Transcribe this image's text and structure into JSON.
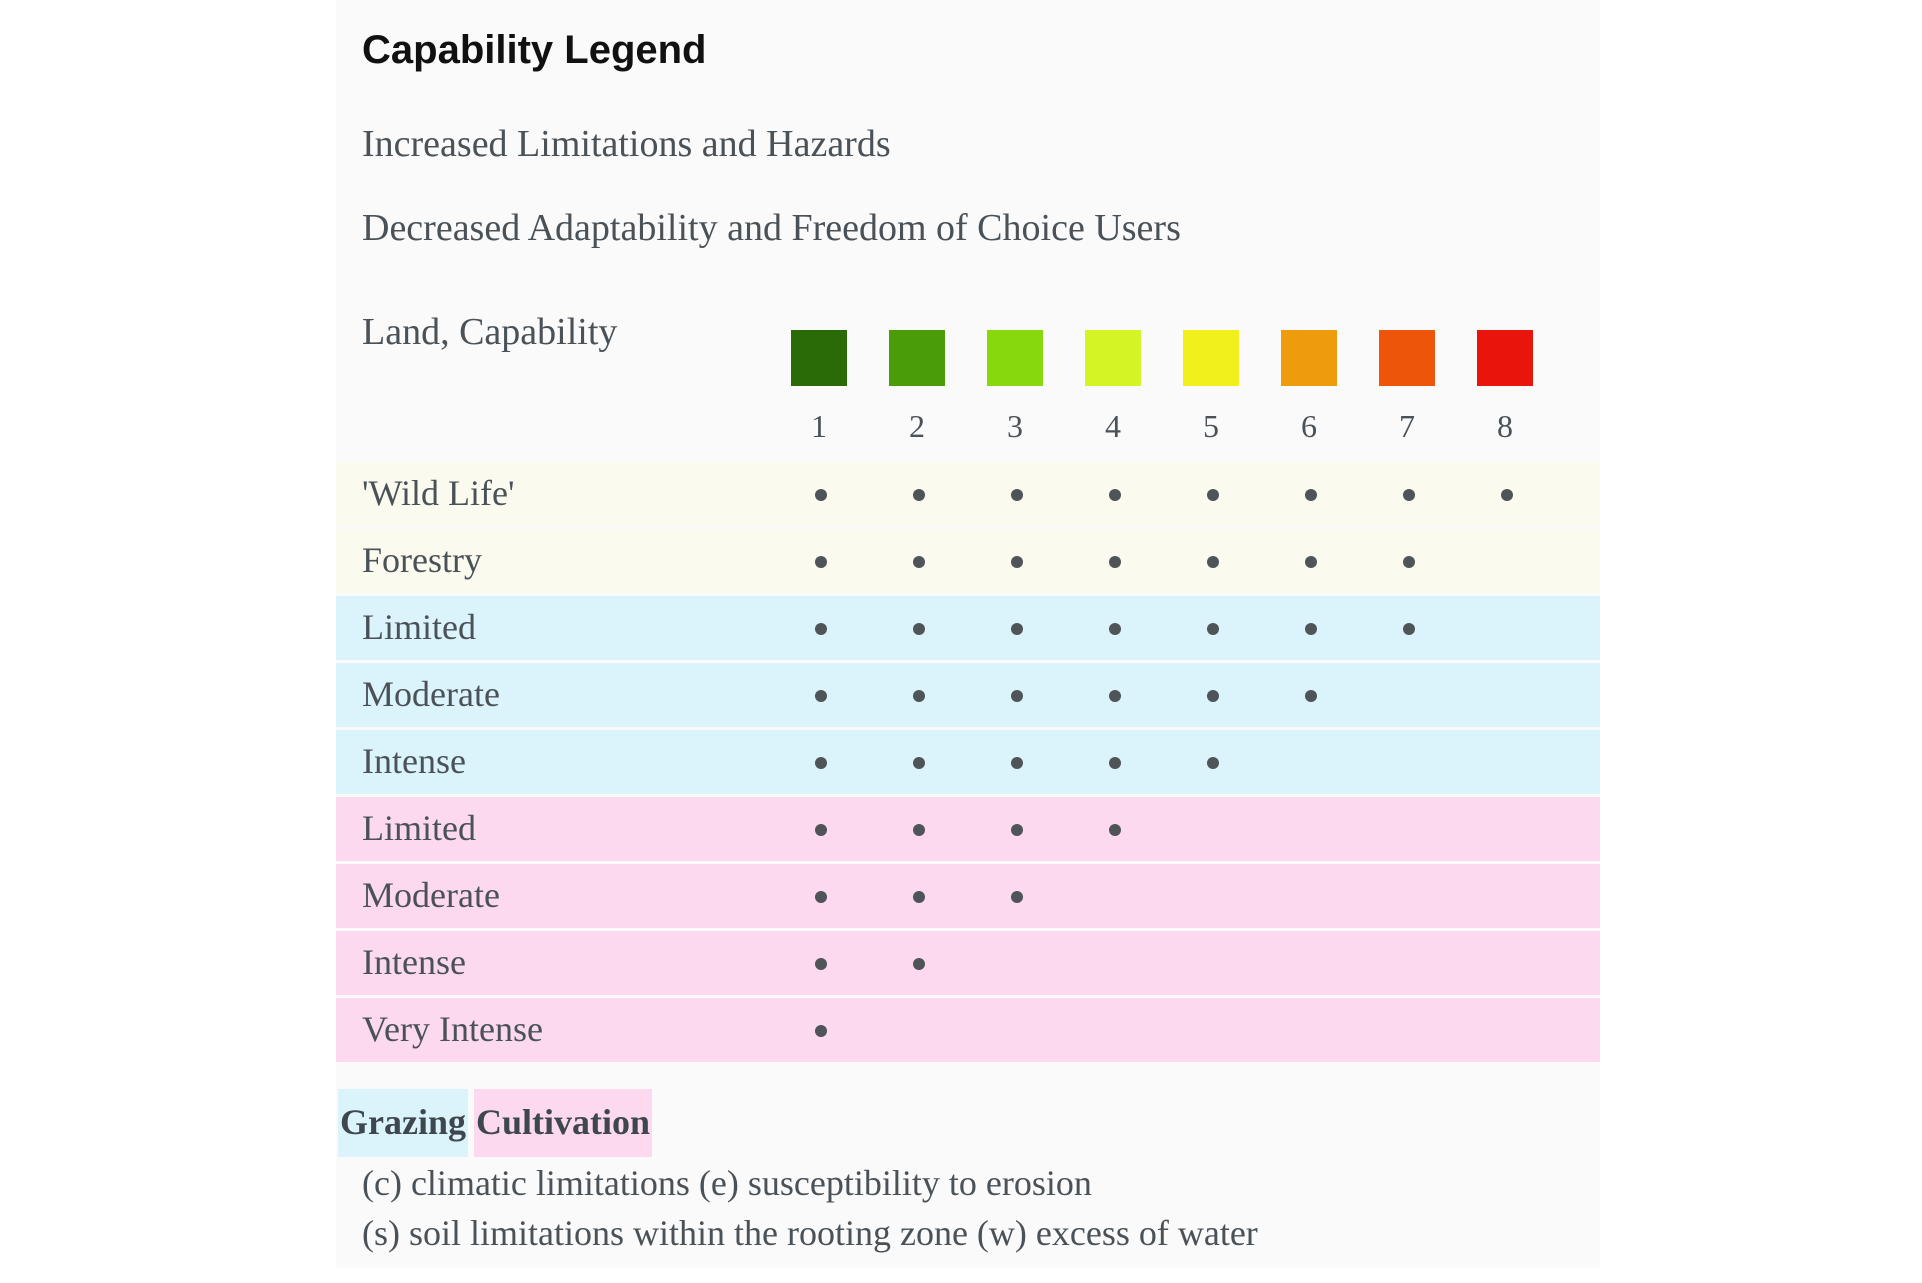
{
  "title": "Capability Legend",
  "subtitle_1": "Increased Limitations and Hazards",
  "subtitle_2": "Decreased Adaptability and Freedom of Choice Users",
  "column_header": "Land, Capability",
  "classes": [
    {
      "number": "1",
      "color": "#2a6a07"
    },
    {
      "number": "2",
      "color": "#4a9d08"
    },
    {
      "number": "3",
      "color": "#88d80e"
    },
    {
      "number": "4",
      "color": "#d4f426"
    },
    {
      "number": "5",
      "color": "#f1ef1c"
    },
    {
      "number": "6",
      "color": "#ee9c0b"
    },
    {
      "number": "7",
      "color": "#ec550a"
    },
    {
      "number": "8",
      "color": "#e9150a"
    }
  ],
  "row_groups": {
    "other": {
      "color": "#fafbee"
    },
    "grazing": {
      "color": "#dbf3fb"
    },
    "cultivation": {
      "color": "#fcd9ef"
    }
  },
  "rows": [
    {
      "label": "'Wild Life'",
      "group": "other",
      "max_class": 8
    },
    {
      "label": "Forestry",
      "group": "other",
      "max_class": 7
    },
    {
      "label": "Limited",
      "group": "grazing",
      "max_class": 7
    },
    {
      "label": "Moderate",
      "group": "grazing",
      "max_class": 6
    },
    {
      "label": "Intense",
      "group": "grazing",
      "max_class": 5
    },
    {
      "label": "Limited",
      "group": "cultivation",
      "max_class": 4
    },
    {
      "label": "Moderate",
      "group": "cultivation",
      "max_class": 3
    },
    {
      "label": "Intense",
      "group": "cultivation",
      "max_class": 2
    },
    {
      "label": "Very Intense",
      "group": "cultivation",
      "max_class": 1
    }
  ],
  "legend": {
    "grazing": "Grazing",
    "cultivation": "Cultivation"
  },
  "footnotes": [
    "(c) climatic limitations (e) susceptibility to erosion",
    "(s) soil limitations within the rooting zone (w) excess of water"
  ]
}
